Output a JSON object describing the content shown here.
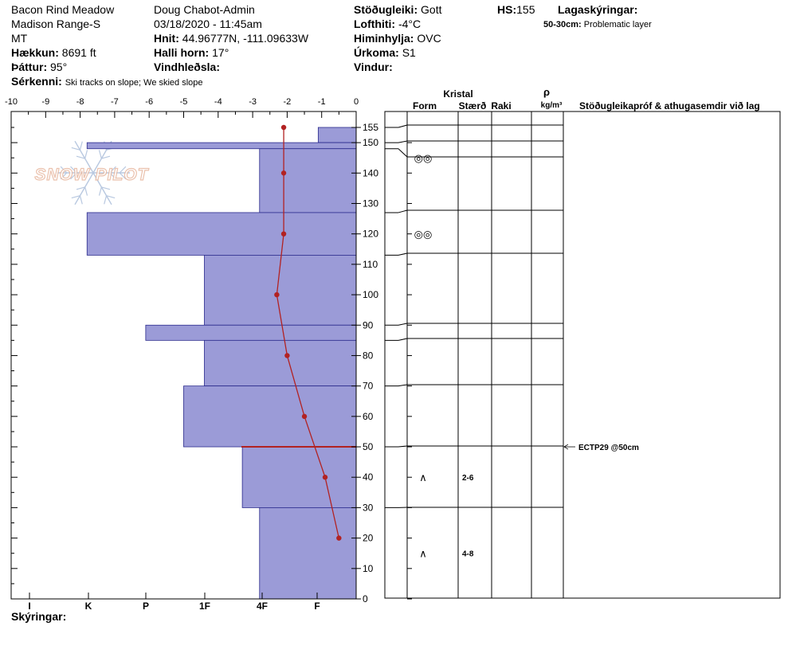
{
  "header": {
    "location": "Bacon Rind Meadow",
    "range": "Madison Range-S",
    "state": "MT",
    "elevation_label": "Hækkun:",
    "elevation_value": "8691 ft",
    "aspect_label": "Þáttur:",
    "aspect_value": "95°",
    "features_label": "Sérkenni:",
    "features_value": "Ski tracks on slope; We skied slope",
    "observer": "Doug Chabot-Admin",
    "datetime": "03/18/2020 - 11:45am",
    "coords_label": "Hnit:",
    "coords_value": "44.96777N, -111.09633W",
    "slope_label": "Halli horn:",
    "slope_value": "17°",
    "wind_loading_label": "Vindhleðsla:",
    "stability_label": "Stöðugleiki:",
    "stability_value": "Gott",
    "air_temp_label": "Lofthiti:",
    "air_temp_value": "-4°C",
    "sky_label": "Himinhylja:",
    "sky_value": "OVC",
    "precip_label": "Úrkoma:",
    "precip_value": "S1",
    "wind_label": "Vindur:",
    "hs_label": "HS:",
    "hs_value": "155",
    "legend_label": "Lagaskýringar:",
    "legend_range": "50-30cm:",
    "legend_text": "Problematic layer"
  },
  "footer": {
    "legend_label": "Skýringar:"
  },
  "logo_text": "SNOW PILOT",
  "colors": {
    "layer_fill": "#9b9bd7",
    "layer_stroke": "#2a2a8c",
    "temp_line": "#b22222",
    "weak_layer": "#b22222"
  },
  "chart_data": {
    "type": "snow-profile",
    "temp_axis": {
      "ticks": [
        "-10",
        "-9",
        "-8",
        "-7",
        "-6",
        "-5",
        "-4",
        "-3",
        "-2",
        "-1",
        "0"
      ],
      "range": [
        -10,
        0
      ]
    },
    "hardness_axis": {
      "ticks": [
        "I",
        "K",
        "P",
        "1F",
        "4F",
        "F"
      ]
    },
    "height_axis": {
      "ticks": [
        "155",
        "150",
        "140",
        "130",
        "120",
        "110",
        "100",
        "90",
        "80",
        "70",
        "60",
        "50",
        "40",
        "30",
        "20",
        "10",
        "0"
      ],
      "range": [
        0,
        155
      ]
    },
    "layers": [
      {
        "top": 155,
        "bottom": 150,
        "hardness_level": 1.1
      },
      {
        "top": 150,
        "bottom": 148,
        "hardness_level": 7.8
      },
      {
        "top": 148,
        "bottom": 127,
        "hardness_level": 2.8
      },
      {
        "top": 127,
        "bottom": 113,
        "hardness_level": 7.8
      },
      {
        "top": 113,
        "bottom": 90,
        "hardness_level": 4.4
      },
      {
        "top": 90,
        "bottom": 85,
        "hardness_level": 6.1
      },
      {
        "top": 85,
        "bottom": 70,
        "hardness_level": 4.4
      },
      {
        "top": 70,
        "bottom": 50,
        "hardness_level": 5.0
      },
      {
        "top": 50,
        "bottom": 30,
        "hardness_level": 3.3
      },
      {
        "top": 30,
        "bottom": 0,
        "hardness_level": 2.8
      }
    ],
    "temperature": [
      {
        "height": 155,
        "temp": -2.1
      },
      {
        "height": 140,
        "temp": -2.1
      },
      {
        "height": 120,
        "temp": -2.1
      },
      {
        "height": 100,
        "temp": -2.3
      },
      {
        "height": 80,
        "temp": -2.0
      },
      {
        "height": 60,
        "temp": -1.5
      },
      {
        "height": 40,
        "temp": -0.9
      },
      {
        "height": 20,
        "temp": -0.5
      }
    ],
    "weak_layer_height": 50,
    "column_headers": {
      "crystal": "Kristal",
      "form": "Form",
      "size": "Stærð",
      "moisture": "Raki",
      "density_symbol": "ρ",
      "density_unit": "kg/m³",
      "tests": "Stöðugleikapróf & athugasemdir við lag"
    },
    "crystals": [
      {
        "height": 145,
        "form": "◎◎",
        "size": ""
      },
      {
        "height": 120,
        "form": "◎◎",
        "size": ""
      },
      {
        "height": 40,
        "form": "∧",
        "size": "2-6"
      },
      {
        "height": 15,
        "form": "∧",
        "size": "4-8"
      }
    ],
    "tests": [
      {
        "height": 50,
        "text": "ECTP29 @50cm"
      }
    ]
  }
}
